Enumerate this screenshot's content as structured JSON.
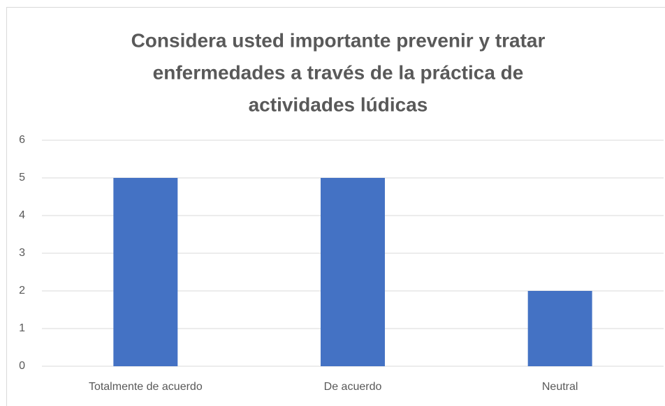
{
  "chart_data": {
    "type": "bar",
    "title": [
      "Considera usted importante prevenir y tratar",
      "enfermedades a través de la práctica de",
      "actividades lúdicas"
    ],
    "categories": [
      "Totalmente de acuerdo",
      "De acuerdo",
      "Neutral"
    ],
    "values": [
      5,
      5,
      2
    ],
    "color": "#4472c4",
    "ylim": [
      0,
      6
    ],
    "yticks": [
      0,
      1,
      2,
      3,
      4,
      5,
      6
    ],
    "grid": true
  }
}
